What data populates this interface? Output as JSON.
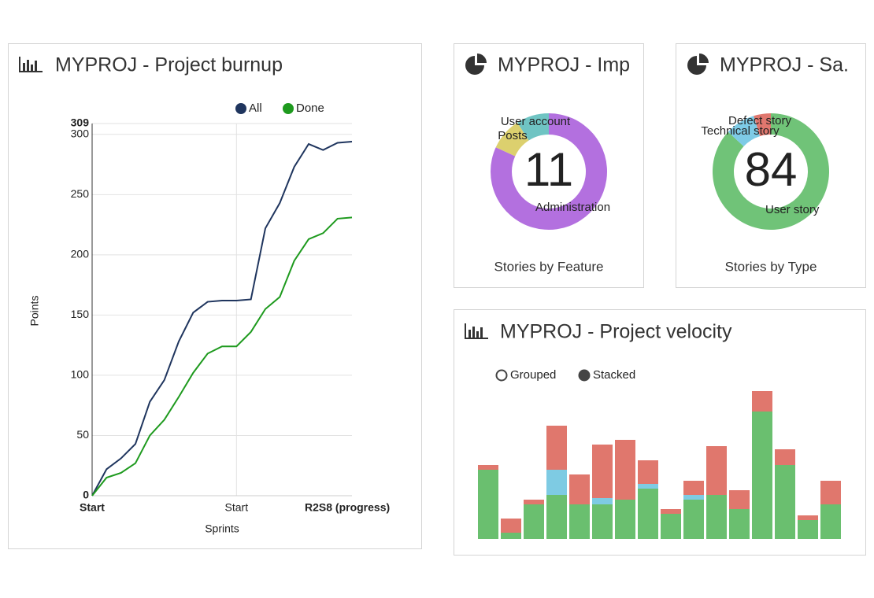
{
  "chart_data": [
    {
      "type": "line",
      "title": "MYPROJ - Project burnup",
      "categories": [
        "Start",
        null,
        null,
        null,
        null,
        null,
        null,
        null,
        null,
        null,
        "Start",
        null,
        null,
        null,
        null,
        null,
        null,
        null,
        "R2S8 (progress)"
      ],
      "series": [
        {
          "name": "All",
          "color": "#1f355e",
          "values": [
            0,
            22,
            31,
            43,
            78,
            96,
            128,
            152,
            161,
            162,
            162,
            163,
            222,
            243,
            273,
            292,
            287,
            293,
            294
          ]
        },
        {
          "name": "Done",
          "color": "#1e9a1e",
          "values": [
            0,
            15,
            19,
            27,
            50,
            63,
            82,
            102,
            118,
            124,
            124,
            136,
            155,
            165,
            195,
            213,
            218,
            230,
            231
          ]
        }
      ],
      "ylim": [
        0,
        309
      ],
      "yticks": [
        0,
        50,
        100,
        150,
        200,
        250,
        300,
        309
      ],
      "y_label": "Points",
      "x_label": "Sprints",
      "grid": true
    },
    {
      "type": "donut",
      "title": "MYPROJ - Imp",
      "subtitle": "Stories by Feature",
      "total": 11,
      "categories": [
        "Administration",
        "Posts",
        "User account"
      ],
      "values": [
        9,
        1,
        1
      ],
      "colors": [
        "#b370df",
        "#dcd06e",
        "#6fc4c3"
      ]
    },
    {
      "type": "donut",
      "title": "MYPROJ - Sa.",
      "subtitle": "Stories by Type",
      "total": 84,
      "categories": [
        "User story",
        "Technical story",
        "Defect story"
      ],
      "values": [
        73,
        7,
        4
      ],
      "colors": [
        "#70c378",
        "#7ecbe6",
        "#e0776e"
      ]
    },
    {
      "type": "stacked_bar",
      "title": "MYPROJ - Project velocity",
      "modes": [
        "Grouped",
        "Stacked"
      ],
      "selected_mode": "Stacked",
      "categories": [
        null,
        null,
        null,
        null,
        null,
        null,
        null,
        null,
        null,
        null,
        null,
        null,
        null,
        null,
        null,
        null
      ],
      "series": [
        {
          "color": "#6abf6f",
          "values": [
            44,
            4,
            22,
            28,
            22,
            22,
            25,
            32,
            16,
            25,
            28,
            19,
            81,
            47,
            12,
            22
          ]
        },
        {
          "color": "#7ecbe3",
          "values": [
            0,
            0,
            0,
            16,
            0,
            4,
            0,
            3,
            0,
            3,
            0,
            0,
            0,
            0,
            0,
            0
          ]
        },
        {
          "color": "#e0776d",
          "values": [
            3,
            9,
            3,
            28,
            19,
            34,
            38,
            15,
            3,
            9,
            31,
            12,
            13,
            10,
            3,
            15
          ]
        }
      ],
      "ylim": [
        0,
        100
      ]
    }
  ]
}
